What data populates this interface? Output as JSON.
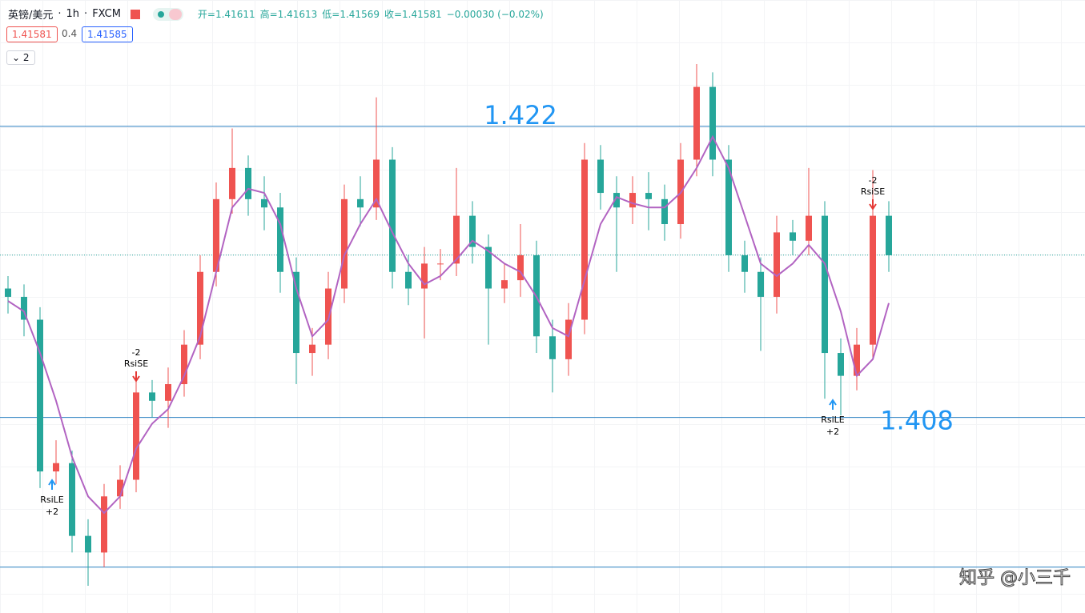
{
  "header": {
    "symbol": "英镑/美元",
    "interval": "1h",
    "source": "FXCM",
    "ohlc": [
      "开=1.41611",
      "高=1.41613",
      "低=1.41569",
      "收=1.41581",
      "−0.00030 (−0.02%)"
    ],
    "bid": 1.41581,
    "spread": 0.4,
    "ask": 1.41585,
    "indicators_count": "2"
  },
  "chart_data": {
    "type": "candlestick",
    "ylim": [
      1.39859,
      1.42808
    ],
    "up_color": "#ef5350",
    "down_color": "#26a69a",
    "ma_color": "#b264c2",
    "level_color": "#2a7fc0",
    "open": [
      1.4142,
      1.4138,
      1.4127,
      1.4054,
      1.4058,
      1.4023,
      1.4015,
      1.4042,
      1.405,
      1.4092,
      1.4088,
      1.4096,
      1.4115,
      1.415,
      1.4185,
      1.42,
      1.4185,
      1.4181,
      1.415,
      1.4111,
      1.4115,
      1.4142,
      1.4185,
      1.4181,
      1.4204,
      1.415,
      1.4142,
      1.4154,
      1.4154,
      1.4177,
      1.4162,
      1.4142,
      1.4146,
      1.4158,
      1.4119,
      1.4108,
      1.4127,
      1.4204,
      1.4188,
      1.4181,
      1.4188,
      1.4185,
      1.4173,
      1.4204,
      1.4239,
      1.4204,
      1.4158,
      1.415,
      1.4138,
      1.4169,
      1.4165,
      1.4177,
      1.4111,
      1.41,
      1.4115,
      1.4177
    ],
    "high": [
      1.4148,
      1.4144,
      1.4133,
      1.4069,
      1.4064,
      1.4031,
      1.4048,
      1.4057,
      1.41,
      1.4098,
      1.4104,
      1.4122,
      1.4158,
      1.4193,
      1.4219,
      1.4206,
      1.4196,
      1.4188,
      1.4157,
      1.4123,
      1.415,
      1.4192,
      1.4196,
      1.4234,
      1.421,
      1.4158,
      1.4162,
      1.4161,
      1.42,
      1.4184,
      1.4168,
      1.4154,
      1.4173,
      1.4165,
      1.4127,
      1.4135,
      1.4212,
      1.4211,
      1.4196,
      1.4196,
      1.4198,
      1.4192,
      1.4212,
      1.425,
      1.4246,
      1.4211,
      1.4165,
      1.4157,
      1.4177,
      1.4175,
      1.42,
      1.4184,
      1.4118,
      1.4123,
      1.4199,
      1.4184
    ],
    "low": [
      1.413,
      1.4119,
      1.4046,
      1.4048,
      1.4015,
      1.3999,
      1.4008,
      1.4036,
      1.4044,
      1.408,
      1.4075,
      1.409,
      1.4108,
      1.4143,
      1.4178,
      1.4177,
      1.417,
      1.414,
      1.4096,
      1.41,
      1.4108,
      1.4135,
      1.4172,
      1.4175,
      1.4142,
      1.4134,
      1.4118,
      1.4146,
      1.4148,
      1.4154,
      1.4115,
      1.4135,
      1.4138,
      1.4111,
      1.4092,
      1.41,
      1.412,
      1.418,
      1.415,
      1.4173,
      1.417,
      1.4165,
      1.4166,
      1.4196,
      1.4196,
      1.415,
      1.414,
      1.4112,
      1.413,
      1.4158,
      1.4158,
      1.4089,
      1.4081,
      1.4093,
      1.4108,
      1.415
    ],
    "close": [
      1.4138,
      1.4127,
      1.4054,
      1.4058,
      1.4023,
      1.4015,
      1.4042,
      1.405,
      1.4092,
      1.4088,
      1.4096,
      1.4115,
      1.415,
      1.4185,
      1.42,
      1.4185,
      1.4181,
      1.415,
      1.4111,
      1.4115,
      1.4142,
      1.4185,
      1.4181,
      1.4204,
      1.415,
      1.4142,
      1.4154,
      1.4154,
      1.4177,
      1.4162,
      1.4142,
      1.4146,
      1.4158,
      1.4119,
      1.4108,
      1.4127,
      1.4204,
      1.4188,
      1.4181,
      1.4188,
      1.4185,
      1.4173,
      1.4204,
      1.4239,
      1.4204,
      1.4158,
      1.415,
      1.4138,
      1.4169,
      1.4165,
      1.4177,
      1.4111,
      1.41,
      1.4115,
      1.4177,
      1.4158
    ],
    "ma": [
      1.4136,
      1.4131,
      1.4111,
      1.4088,
      1.4061,
      1.4042,
      1.4034,
      1.4042,
      1.4065,
      1.4077,
      1.4084,
      1.41,
      1.4119,
      1.415,
      1.4181,
      1.419,
      1.4188,
      1.4173,
      1.4142,
      1.4119,
      1.4127,
      1.4158,
      1.4173,
      1.4185,
      1.4169,
      1.4154,
      1.4144,
      1.4148,
      1.4156,
      1.4165,
      1.416,
      1.4154,
      1.415,
      1.4138,
      1.4123,
      1.4119,
      1.4146,
      1.4173,
      1.4186,
      1.4183,
      1.4181,
      1.4181,
      1.4188,
      1.42,
      1.4215,
      1.42,
      1.4177,
      1.4154,
      1.4148,
      1.4154,
      1.4163,
      1.4154,
      1.4131,
      1.41,
      1.4108,
      1.4135
    ],
    "levels": [
      1.422,
      1.408,
      1.4008
    ],
    "signals": [
      {
        "name": "RsiLE",
        "qty": "+2"
      },
      {
        "name": "RsiSE",
        "qty": "-2"
      },
      {
        "name": "RsiLE",
        "qty": "+2"
      },
      {
        "name": "RsiSE",
        "qty": "-2"
      }
    ]
  },
  "watermark": "知乎 @小三千"
}
